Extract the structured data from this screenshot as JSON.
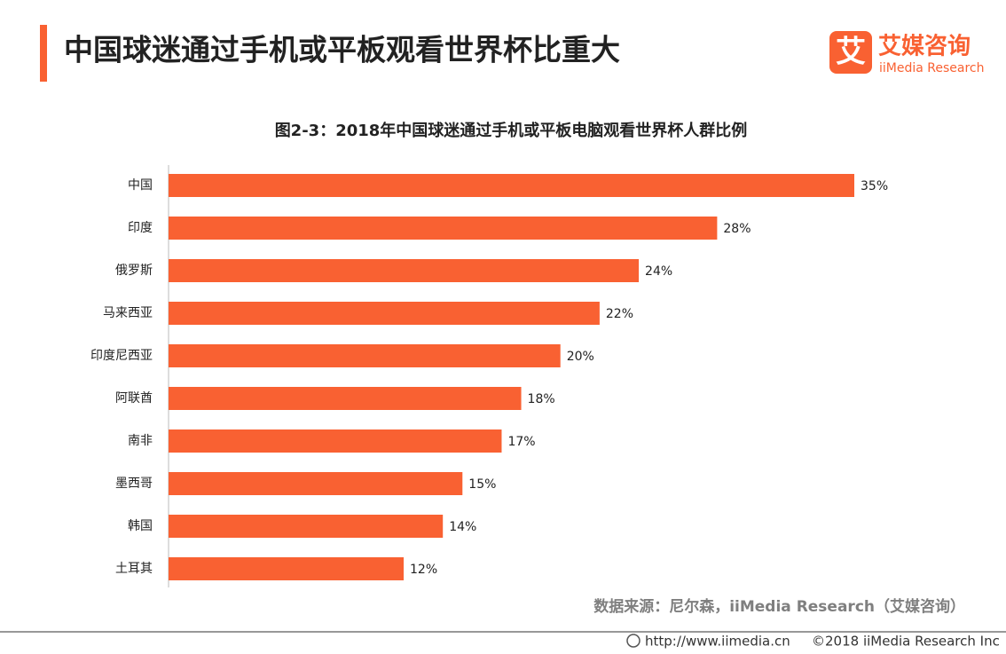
{
  "header": {
    "title": "中国球迷通过手机或平板观看世界杯比重大",
    "logo_icon": "艾",
    "logo_name": "艾媒咨询",
    "logo_sub": "iiMedia Research"
  },
  "chart_data": {
    "type": "bar",
    "orientation": "horizontal",
    "title": "图2-3：2018年中国球迷通过手机或平板电脑观看世界杯人群比例",
    "categories": [
      "中国",
      "印度",
      "俄罗斯",
      "马来西亚",
      "印度尼西亚",
      "阿联酋",
      "南非",
      "墨西哥",
      "韩国",
      "土耳其"
    ],
    "values": [
      35,
      28,
      24,
      22,
      20,
      18,
      17,
      15,
      14,
      12
    ],
    "value_labels": [
      "35%",
      "28%",
      "24%",
      "22%",
      "20%",
      "18%",
      "17%",
      "15%",
      "14%",
      "12%"
    ],
    "color": "#f96132",
    "source": "数据来源：尼尔森，iiMedia Research（艾媒咨询）"
  },
  "footer": {
    "url": "http://www.iimedia.cn",
    "copyright": "©2018  iiMedia Research  Inc"
  }
}
